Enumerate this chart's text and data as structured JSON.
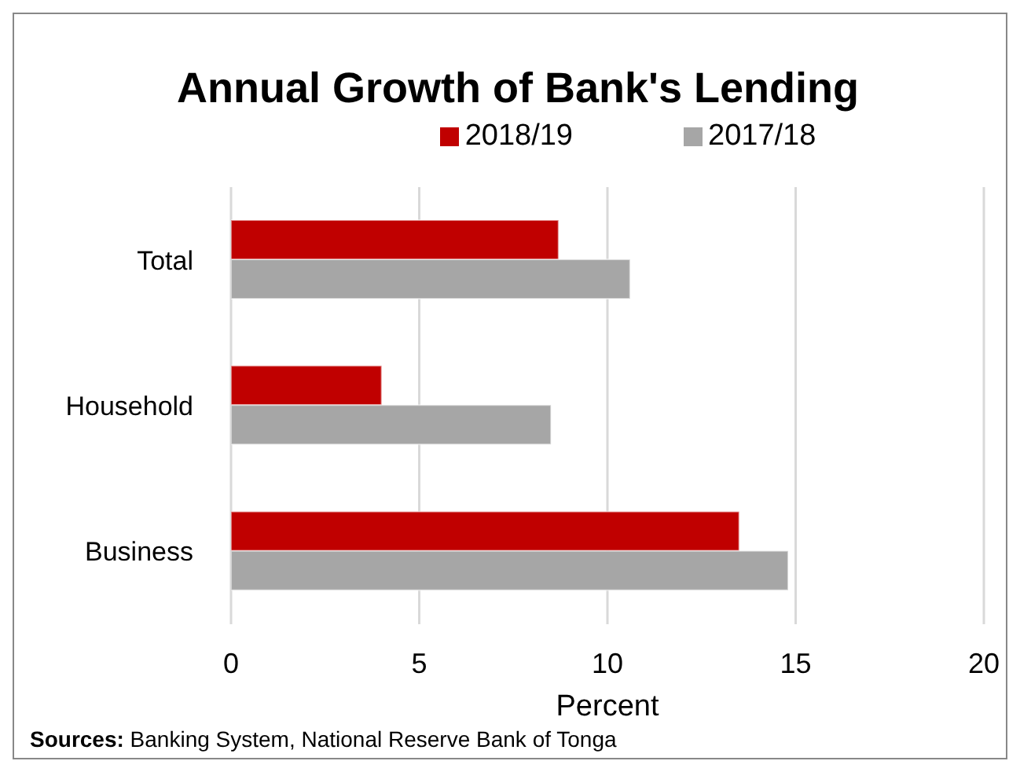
{
  "chart_data": {
    "type": "bar",
    "orientation": "horizontal",
    "title": "Annual Growth of Bank's Lending",
    "xlabel": "Percent",
    "categories": [
      "Total",
      "Household",
      "Business"
    ],
    "series": [
      {
        "name": "2018/19",
        "color": "#c00000",
        "values": [
          8.7,
          4.0,
          13.5
        ]
      },
      {
        "name": "2017/18",
        "color": "#a6a6a6",
        "values": [
          10.6,
          8.5,
          14.8
        ]
      }
    ],
    "xlim": [
      0,
      20
    ],
    "xticks": [
      0,
      5,
      10,
      15,
      20
    ],
    "grid": "x",
    "legend": "top",
    "annotations": [
      "Sources: Banking System, National Reserve Bank of Tonga"
    ]
  }
}
